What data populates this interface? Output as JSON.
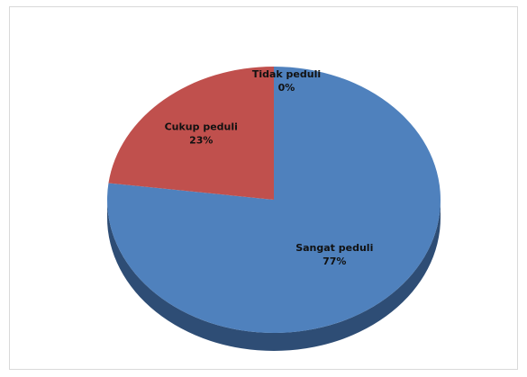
{
  "chart_data": {
    "type": "pie",
    "style": "3d",
    "title": "",
    "slices": [
      {
        "label": "Sangat peduli",
        "value": 77,
        "value_label": "77%",
        "color": "#4f81bd",
        "side_color": "#2e4d75"
      },
      {
        "label": "Cukup peduli",
        "value": 23,
        "value_label": "23%",
        "color": "#c0504d",
        "side_color": "#7a2c2a"
      },
      {
        "label": "Tidak peduli",
        "value": 0,
        "value_label": "0%",
        "color": "#9bbb59",
        "side_color": "#5f7a2e"
      }
    ],
    "legend": "none",
    "labels_inside": true
  }
}
